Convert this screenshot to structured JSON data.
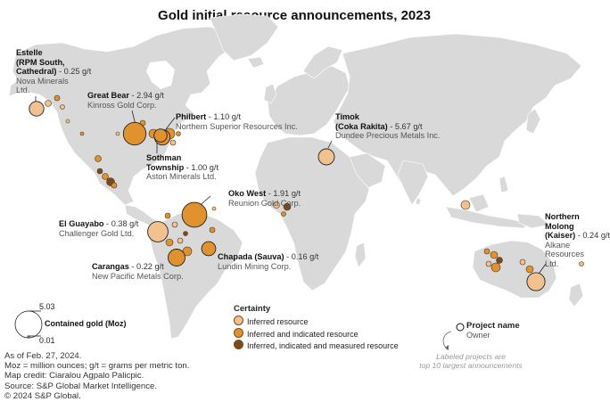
{
  "title": "Gold initial resource announcements, 2023",
  "colors": {
    "land": "#d9d9d9",
    "inferred": "#f2c190",
    "inferred_indicated": "#e0922e",
    "inferred_indicated_measured": "#7a4a1a",
    "outline": "#4a3520"
  },
  "projects": [
    {
      "name_lines": [
        "Estelle",
        "(RPM South,",
        "Cathedral)"
      ],
      "grade": " - 0.25 g/t",
      "owner_lines": [
        "Nova Minerals",
        "Ltd."
      ],
      "certainty": "inferred",
      "moz": 1.5
    },
    {
      "name_lines": [
        "Great Bear"
      ],
      "grade": " - 2.94 g/t",
      "owner_lines": [
        "Kinross Gold Corp."
      ],
      "certainty": "inferred_indicated",
      "moz": 3.6
    },
    {
      "name_lines": [
        "Philbert"
      ],
      "grade": " - 1.10 g/t",
      "owner_lines": [
        "Northern Superior Resources Inc."
      ],
      "certainty": "inferred_indicated",
      "moz": 1.7
    },
    {
      "name_lines": [
        "Sothman",
        "Township"
      ],
      "grade": " - 1.00 g/t",
      "owner_lines": [
        "Aston Minerals Ltd."
      ],
      "certainty": "inferred_indicated",
      "moz": 1.2
    },
    {
      "name_lines": [
        "Timok",
        "(Coka Rakita)"
      ],
      "grade": " - 5.67 g/t",
      "owner_lines": [
        "Dundee Precious Metals Inc."
      ],
      "certainty": "inferred",
      "moz": 1.8
    },
    {
      "name_lines": [
        "Oko West"
      ],
      "grade": " - 1.91 g/t",
      "owner_lines": [
        "Reunion Gold Corp."
      ],
      "certainty": "inferred_indicated",
      "moz": 4.3
    },
    {
      "name_lines": [
        "El Guayabo"
      ],
      "grade": " - 0.38 g/t",
      "owner_lines": [
        "Challenger Gold Ltd."
      ],
      "certainty": "inferred",
      "moz": 2.9
    },
    {
      "name_lines": [
        "Carangas"
      ],
      "grade": " - 0.22 g/t",
      "owner_lines": [
        "New Pacific Metals Corp."
      ],
      "certainty": "inferred_indicated",
      "moz": 2.0
    },
    {
      "name_lines": [
        "Chapada (Sauva)"
      ],
      "grade": " - 0.16 g/t",
      "owner_lines": [
        "Lundin Mining Corp."
      ],
      "certainty": "inferred_indicated",
      "moz": 1.4
    },
    {
      "name_lines": [
        "Northern",
        "Molong",
        "(Kaiser)"
      ],
      "grade": " - 0.24 g/t",
      "owner_lines": [
        "Alkane",
        "Resources",
        "Ltd."
      ],
      "certainty": "inferred",
      "moz": 2.3
    }
  ],
  "size_legend": {
    "max": "5.03",
    "min": "0.01",
    "label": "Contained gold (Moz)"
  },
  "certainty_legend": {
    "title": "Certainty",
    "items": [
      "Inferred resource",
      "Inferred and indicated resource",
      "Inferred, indicated and measured resource"
    ]
  },
  "key_legend": {
    "project": "Project name",
    "owner": "Owner",
    "note_lines": [
      "Labeled projects are",
      "top 10 largest announcements"
    ]
  },
  "notes": [
    "As of Feb. 27, 2024.",
    "Moz = million ounces; g/t = grams per metric ton.",
    "Map credit: Ciaralou Agpalo Palicpic.",
    "Source: S&P Global Market Intelligence.",
    "© 2024 S&P Global."
  ]
}
